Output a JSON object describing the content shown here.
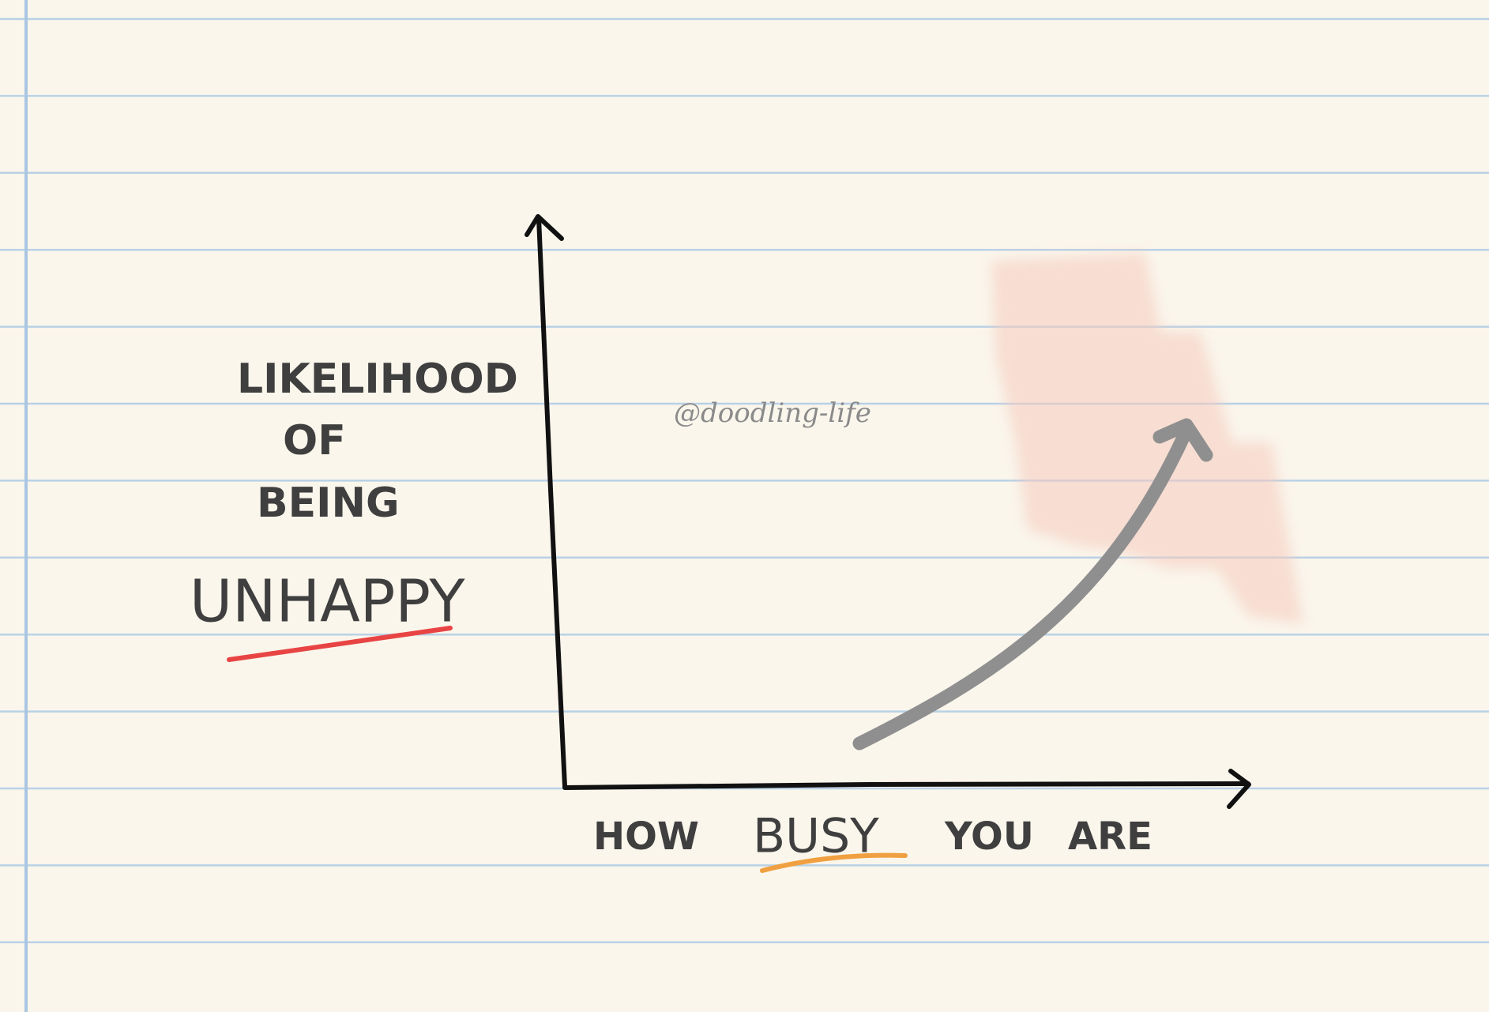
{
  "y_axis_label": [
    "LIKELIHOOD",
    "OF",
    "BEING",
    "UNHAPPY"
  ],
  "x_axis_label": [
    "HOW",
    "BUSY",
    "YOU",
    "ARE"
  ],
  "watermark": "@doodling-life"
}
